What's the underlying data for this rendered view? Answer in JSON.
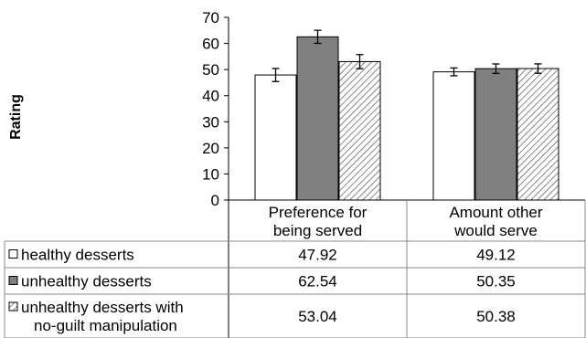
{
  "chart_data": {
    "type": "bar",
    "ylabel": "Rating",
    "ylim": [
      0,
      70
    ],
    "yticks": [
      0,
      10,
      20,
      30,
      40,
      50,
      60,
      70
    ],
    "grid": false,
    "legend": "data-table-below",
    "categories": [
      {
        "lines": [
          "Preference for",
          "being served"
        ]
      },
      {
        "lines": [
          "Amount other",
          "would serve"
        ]
      }
    ],
    "series": [
      {
        "name_lines": [
          "healthy desserts"
        ],
        "fill": "white",
        "values": [
          47.92,
          49.12
        ],
        "errors": [
          2.5,
          1.5
        ],
        "labels": [
          "47.92",
          "49.12"
        ]
      },
      {
        "name_lines": [
          "unhealthy desserts"
        ],
        "fill": "#808080",
        "values": [
          62.54,
          50.35
        ],
        "errors": [
          2.5,
          1.8
        ],
        "labels": [
          "62.54",
          "50.35"
        ]
      },
      {
        "name_lines": [
          "unhealthy desserts with",
          "no-guilt manipulation"
        ],
        "fill": "hatch",
        "values": [
          53.04,
          50.38
        ],
        "errors": [
          2.7,
          1.8
        ],
        "labels": [
          "53.04",
          "50.38"
        ]
      }
    ]
  }
}
